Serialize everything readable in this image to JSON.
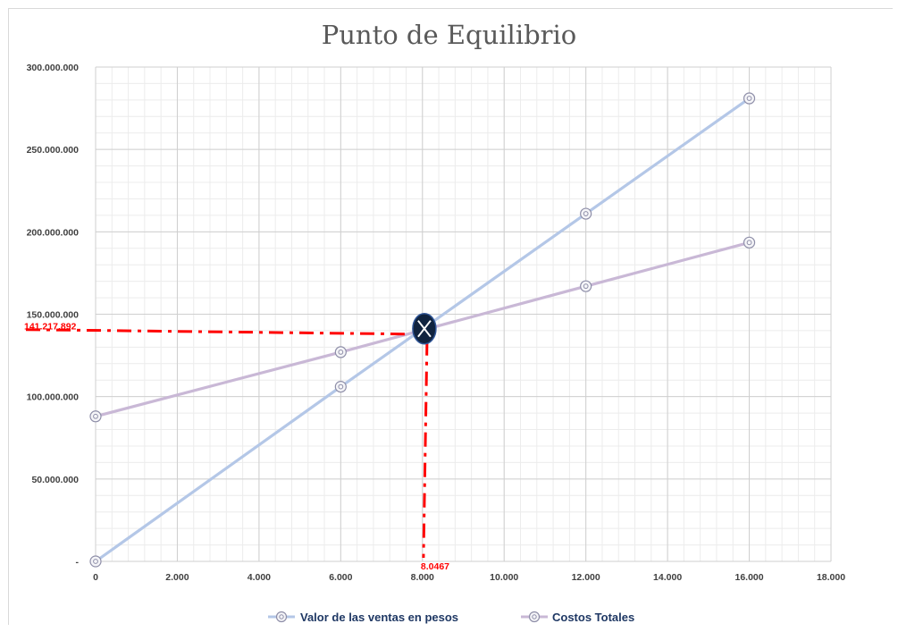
{
  "chart_data": {
    "type": "line",
    "title": "Punto de Equilibrio",
    "x": [
      0,
      6000,
      12000,
      16000
    ],
    "xlim": [
      0,
      18000
    ],
    "ylim": [
      0,
      300000000
    ],
    "x_ticks": [
      0,
      2000,
      4000,
      6000,
      8000,
      10000,
      12000,
      14000,
      16000,
      18000
    ],
    "x_tick_labels": [
      "0",
      "2.000",
      "4.000",
      "6.000",
      "8.000",
      "10.000",
      "12.000",
      "14.000",
      "16.000",
      "18.000"
    ],
    "y_ticks": [
      0,
      50000000,
      100000000,
      150000000,
      200000000,
      250000000,
      300000000
    ],
    "y_tick_labels": [
      "-",
      "50.000.000",
      "100.000.000",
      "150.000.000",
      "200.000.000",
      "250.000.000",
      "300.000.000"
    ],
    "grid": true,
    "minor_grid": true,
    "legend_position": "bottom",
    "series": [
      {
        "name": "Valor de las ventas en pesos",
        "values": [
          0,
          106000000,
          211000000,
          281000000
        ],
        "color": "#b4c7e7"
      },
      {
        "name": "Costos Totales",
        "values": [
          88000000,
          127000000,
          167000000,
          193500000
        ],
        "color": "#c9b8d6"
      }
    ],
    "breakeven": {
      "x": 8046.7,
      "y": 141217892,
      "x_label": "8.0467",
      "y_label": "141.217.892",
      "line_color": "#ff0000",
      "marker_color": "#10233f"
    }
  }
}
